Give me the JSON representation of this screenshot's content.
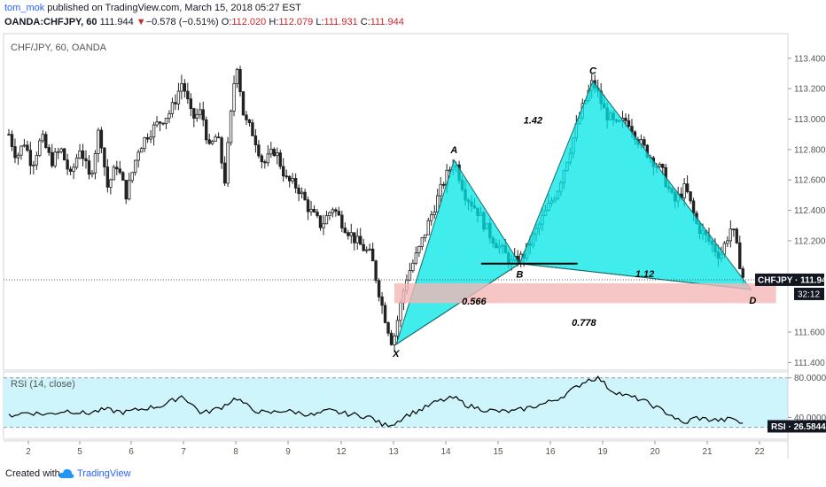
{
  "header": {
    "author": "tom_mok",
    "published_text": " published on TradingView.com, March 15, 2018 05:27 EST",
    "symbol": "OANDA:CHFJPY, 60",
    "last": "111.944",
    "change_arrow": "▼",
    "change": "−0.578 (−0.51%)",
    "o_label": "O:",
    "o_value": "112.020",
    "h_label": "H:",
    "h_value": "112.079",
    "l_label": "L:",
    "l_value": "111.931",
    "c_label": "C:",
    "c_value": "111.944"
  },
  "footer": {
    "created_with": "Created with",
    "brand": "TradingView"
  },
  "colors": {
    "harmonic_fill": "#00e5e5",
    "zone_fill": "#f4b6b6",
    "rsi_band": "#cdf5fb",
    "badge": "#131722"
  },
  "chart_data": [
    {
      "type": "candlestick",
      "title": "CHF/JPY, 60, OANDA",
      "ylim": [
        111.35,
        113.55
      ],
      "y_ticks": [
        "113.400",
        "113.200",
        "113.000",
        "112.800",
        "112.600",
        "112.400",
        "112.200",
        "112.000",
        "111.800",
        "111.600",
        "111.400"
      ],
      "x_ticks": [
        "2",
        "5",
        "6",
        "7",
        "8",
        "9",
        "12",
        "13",
        "14",
        "15",
        "16",
        "19",
        "20",
        "21",
        "22"
      ],
      "price_line": 111.944,
      "price_badge": "CHFJPY",
      "price_badge_value": "111.944",
      "countdown": "32:12",
      "price_path": [
        {
          "t": 0,
          "p": 112.9
        },
        {
          "t": 4,
          "p": 112.75
        },
        {
          "t": 8,
          "p": 112.85
        },
        {
          "t": 12,
          "p": 112.7
        },
        {
          "t": 17,
          "p": 112.88
        },
        {
          "t": 22,
          "p": 112.72
        },
        {
          "t": 27,
          "p": 112.8
        },
        {
          "t": 32,
          "p": 112.62
        },
        {
          "t": 37,
          "p": 112.82
        },
        {
          "t": 42,
          "p": 112.6
        },
        {
          "t": 47,
          "p": 112.95
        },
        {
          "t": 51,
          "p": 112.55
        },
        {
          "t": 56,
          "p": 112.7
        },
        {
          "t": 61,
          "p": 112.5
        },
        {
          "t": 67,
          "p": 112.8
        },
        {
          "t": 72,
          "p": 112.9
        },
        {
          "t": 78,
          "p": 112.98
        },
        {
          "t": 84,
          "p": 113.05
        },
        {
          "t": 90,
          "p": 113.25
        },
        {
          "t": 95,
          "p": 113.0
        },
        {
          "t": 100,
          "p": 113.05
        },
        {
          "t": 104,
          "p": 112.8
        },
        {
          "t": 108,
          "p": 112.9
        },
        {
          "t": 112,
          "p": 112.6
        },
        {
          "t": 118,
          "p": 113.4
        },
        {
          "t": 122,
          "p": 113.0
        },
        {
          "t": 127,
          "p": 112.9
        },
        {
          "t": 132,
          "p": 112.7
        },
        {
          "t": 138,
          "p": 112.8
        },
        {
          "t": 144,
          "p": 112.6
        },
        {
          "t": 150,
          "p": 112.55
        },
        {
          "t": 156,
          "p": 112.4
        },
        {
          "t": 162,
          "p": 112.3
        },
        {
          "t": 168,
          "p": 112.42
        },
        {
          "t": 174,
          "p": 112.3
        },
        {
          "t": 180,
          "p": 112.2
        },
        {
          "t": 188,
          "p": 112.1
        },
        {
          "t": 194,
          "p": 111.75
        },
        {
          "t": 199,
          "p": 111.52
        },
        {
          "t": 206,
          "p": 111.95
        },
        {
          "t": 213,
          "p": 112.15
        },
        {
          "t": 220,
          "p": 112.4
        },
        {
          "t": 226,
          "p": 112.6
        },
        {
          "t": 231,
          "p": 112.73
        },
        {
          "t": 237,
          "p": 112.5
        },
        {
          "t": 243,
          "p": 112.4
        },
        {
          "t": 249,
          "p": 112.25
        },
        {
          "t": 255,
          "p": 112.15
        },
        {
          "t": 261,
          "p": 112.05
        },
        {
          "t": 267,
          "p": 112.1
        },
        {
          "t": 273,
          "p": 112.25
        },
        {
          "t": 279,
          "p": 112.4
        },
        {
          "t": 285,
          "p": 112.55
        },
        {
          "t": 291,
          "p": 112.8
        },
        {
          "t": 297,
          "p": 113.05
        },
        {
          "t": 303,
          "p": 113.25
        },
        {
          "t": 309,
          "p": 113.05
        },
        {
          "t": 315,
          "p": 112.95
        },
        {
          "t": 321,
          "p": 113.0
        },
        {
          "t": 327,
          "p": 112.85
        },
        {
          "t": 333,
          "p": 112.75
        },
        {
          "t": 339,
          "p": 112.65
        },
        {
          "t": 345,
          "p": 112.45
        },
        {
          "t": 351,
          "p": 112.55
        },
        {
          "t": 357,
          "p": 112.3
        },
        {
          "t": 363,
          "p": 112.2
        },
        {
          "t": 369,
          "p": 112.1
        },
        {
          "t": 375,
          "p": 112.3
        },
        {
          "t": 381,
          "p": 111.95
        }
      ],
      "pattern": {
        "points": [
          {
            "label": "X",
            "t": 201,
            "p": 111.52
          },
          {
            "label": "A",
            "t": 231,
            "p": 112.73
          },
          {
            "label": "B",
            "t": 265,
            "p": 112.05
          },
          {
            "label": "C",
            "t": 303,
            "p": 113.25
          },
          {
            "label": "D",
            "t": 385,
            "p": 111.88
          }
        ],
        "ratios": [
          {
            "text": "0.566",
            "t": 235,
            "p": 111.78
          },
          {
            "text": "1.42",
            "t": 267,
            "p": 112.97
          },
          {
            "text": "0.778",
            "t": 292,
            "p": 111.64
          },
          {
            "text": "1.12",
            "t": 325,
            "p": 111.96
          }
        ],
        "b_level": {
          "t0": 245,
          "t1": 295,
          "p": 112.05
        },
        "prz": {
          "t0": 200,
          "t1": 398,
          "p_top": 111.92,
          "p_bottom": 111.79
        }
      }
    },
    {
      "type": "line",
      "title": "RSI (14, close)",
      "ylim": [
        18,
        86
      ],
      "y_ticks": [
        "80.0000",
        "40.0000"
      ],
      "band": [
        30,
        80
      ],
      "badge": "RSI",
      "last_value": "26.5844",
      "values": [
        {
          "t": 0,
          "v": 42
        },
        {
          "t": 10,
          "v": 45
        },
        {
          "t": 20,
          "v": 43
        },
        {
          "t": 30,
          "v": 47
        },
        {
          "t": 40,
          "v": 44
        },
        {
          "t": 50,
          "v": 48
        },
        {
          "t": 60,
          "v": 45
        },
        {
          "t": 70,
          "v": 49
        },
        {
          "t": 80,
          "v": 52
        },
        {
          "t": 90,
          "v": 62
        },
        {
          "t": 100,
          "v": 44
        },
        {
          "t": 110,
          "v": 50
        },
        {
          "t": 118,
          "v": 60
        },
        {
          "t": 126,
          "v": 48
        },
        {
          "t": 134,
          "v": 44
        },
        {
          "t": 142,
          "v": 47
        },
        {
          "t": 150,
          "v": 45
        },
        {
          "t": 158,
          "v": 42
        },
        {
          "t": 166,
          "v": 47
        },
        {
          "t": 174,
          "v": 44
        },
        {
          "t": 182,
          "v": 42
        },
        {
          "t": 188,
          "v": 40
        },
        {
          "t": 194,
          "v": 32
        },
        {
          "t": 200,
          "v": 34
        },
        {
          "t": 206,
          "v": 42
        },
        {
          "t": 214,
          "v": 48
        },
        {
          "t": 222,
          "v": 56
        },
        {
          "t": 231,
          "v": 60
        },
        {
          "t": 238,
          "v": 52
        },
        {
          "t": 246,
          "v": 48
        },
        {
          "t": 254,
          "v": 46
        },
        {
          "t": 262,
          "v": 46
        },
        {
          "t": 270,
          "v": 50
        },
        {
          "t": 278,
          "v": 54
        },
        {
          "t": 286,
          "v": 60
        },
        {
          "t": 294,
          "v": 70
        },
        {
          "t": 300,
          "v": 78
        },
        {
          "t": 306,
          "v": 80
        },
        {
          "t": 312,
          "v": 68
        },
        {
          "t": 320,
          "v": 62
        },
        {
          "t": 328,
          "v": 58
        },
        {
          "t": 336,
          "v": 50
        },
        {
          "t": 344,
          "v": 42
        },
        {
          "t": 350,
          "v": 33
        },
        {
          "t": 356,
          "v": 40
        },
        {
          "t": 362,
          "v": 38
        },
        {
          "t": 370,
          "v": 37
        },
        {
          "t": 376,
          "v": 39
        },
        {
          "t": 382,
          "v": 31
        }
      ]
    }
  ]
}
